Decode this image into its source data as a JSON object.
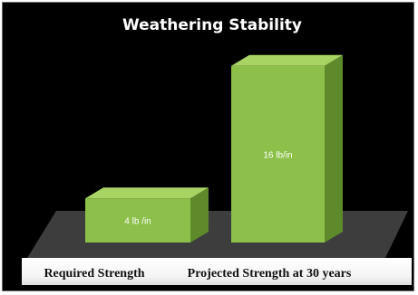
{
  "chart_data": {
    "type": "bar",
    "title": "Weathering Stability",
    "categories": [
      "Required Strength",
      "Projected Strength at 30 years"
    ],
    "values": [
      4,
      16
    ],
    "data_labels": [
      "4 lb /in",
      "16 lb/in"
    ],
    "xlabel": "",
    "ylabel": "",
    "ylim": [
      0,
      16
    ],
    "grid": false,
    "legend": "none",
    "colors": {
      "bar_front": "#8cc04a",
      "bar_top": "#a8d464",
      "bar_side": "#5f8a2c",
      "floor": "#3d3d3d",
      "background": "#000000",
      "category_band": "#ffffff"
    }
  }
}
